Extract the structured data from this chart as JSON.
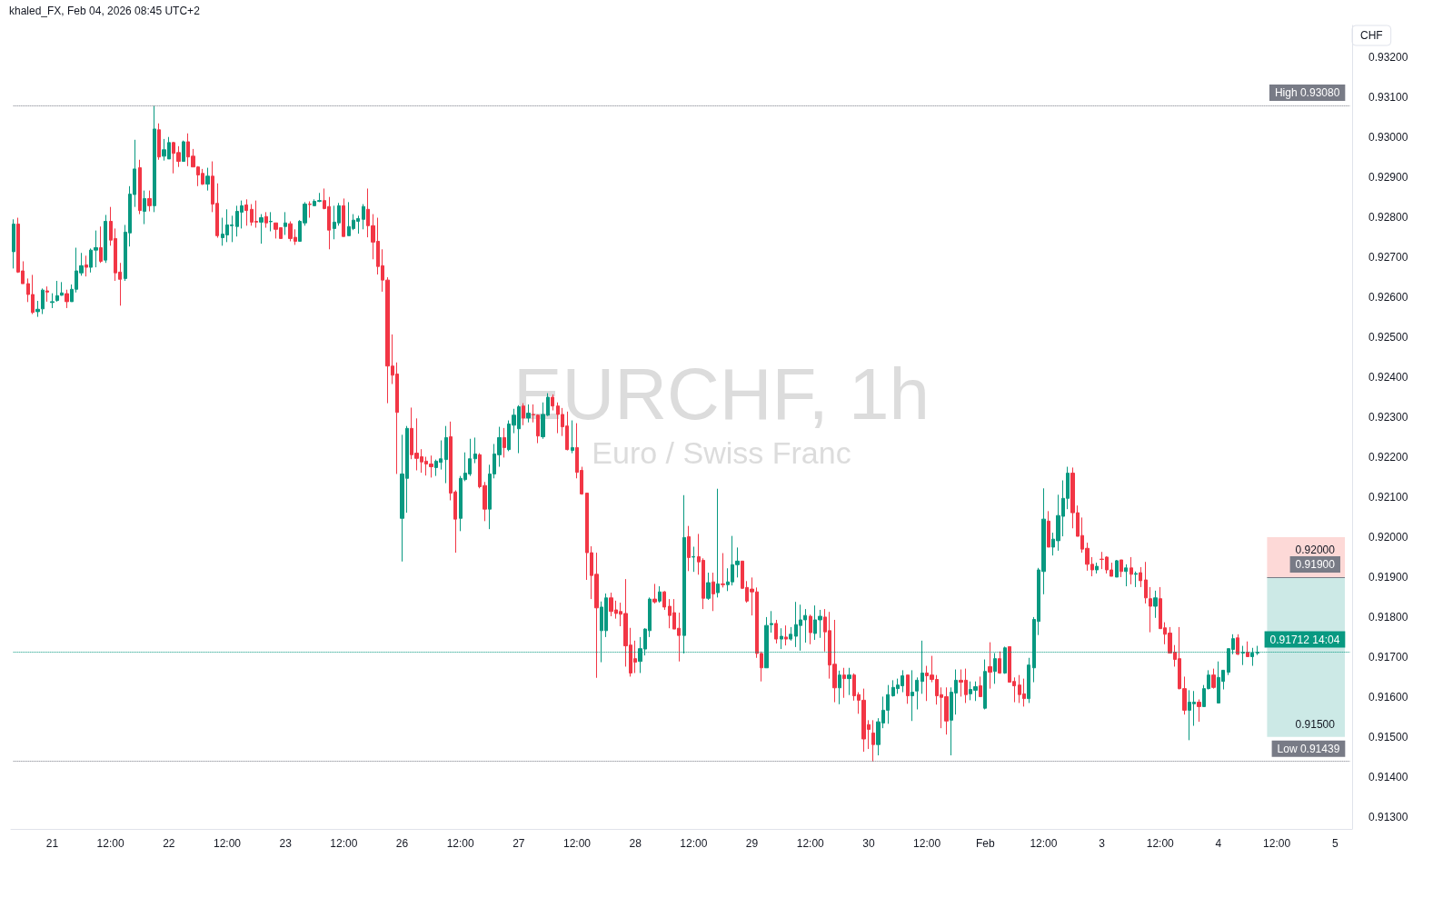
{
  "chart_data": {
    "type": "candlestick",
    "title": "EURCHF, 1h",
    "subtitle": "Euro / Swiss Franc",
    "ylabel": "CHF",
    "annotations": [
      "khaled_FX, Feb 04, 2026 08:45 UTC+2",
      {
        "text": "0.91900",
        "y": 0.919
      }
    ],
    "colors": [
      "#089981",
      "#f23645",
      "#f23645",
      "#f23645",
      "#f23645",
      "#089981",
      "#089981",
      "#f23645",
      "#089981",
      "#089981",
      "#089981",
      "#f23645",
      "#089981",
      "#089981",
      "#089981",
      "#f23645",
      "#089981",
      "#089981",
      "#f23645",
      "#089981",
      "#f23645",
      "#f23645",
      "#f23645",
      "#089981",
      "#089981",
      "#089981",
      "#f23645",
      "#089981",
      "#f23645",
      "#089981",
      "#f23645",
      "#089981",
      "#089981",
      "#f23645",
      "#f23645",
      "#089981",
      "#f23645",
      "#f23645",
      "#f23645",
      "#f23645",
      "#089981",
      "#f23645",
      "#f23645",
      "#089981",
      "#089981",
      "#089981",
      "#089981",
      "#089981",
      "#f23645",
      "#f23645",
      "#f23645",
      "#089981",
      "#f23645",
      "#089981",
      "#f23645",
      "#f23645",
      "#089981",
      "#f23645",
      "#f23645",
      "#089981",
      "#089981",
      "#f23645",
      "#089981",
      "#089981",
      "#f23645",
      "#f23645",
      "#089981",
      "#089981",
      "#f23645",
      "#089981",
      "#089981",
      "#089981",
      "#089981",
      "#f23645",
      "#f23645",
      "#f23645",
      "#f23645",
      "#f23645",
      "#f23645",
      "#f23645",
      "#089981",
      "#089981",
      "#f23645",
      "#f23645",
      "#f23645",
      "#f23645",
      "#f23645",
      "#089981",
      "#089981",
      "#089981",
      "#f23645",
      "#f23645",
      "#089981",
      "#089981",
      "#089981",
      "#089981",
      "#f23645",
      "#f23645",
      "#089981",
      "#089981",
      "#089981",
      "#f23645",
      "#089981",
      "#089981",
      "#089981",
      "#f23645",
      "#089981",
      "#f23645",
      "#f23645",
      "#089981",
      "#089981",
      "#f23645",
      "#f23645",
      "#f23645",
      "#f23645",
      "#089981",
      "#f23645",
      "#f23645",
      "#f23645",
      "#f23645",
      "#f23645",
      "#089981",
      "#089981",
      "#f23645",
      "#f23645",
      "#f23645",
      "#f23645",
      "#f23645",
      "#f23645",
      "#089981",
      "#089981",
      "#089981",
      "#f23645",
      "#089981",
      "#f23645",
      "#f23645",
      "#f23645",
      "#f23645",
      "#089981",
      "#f23645",
      "#089981",
      "#f23645",
      "#f23645",
      "#089981",
      "#f23645",
      "#089981",
      "#f23645",
      "#089981",
      "#089981",
      "#089981",
      "#f23645",
      "#f23645",
      "#f23645",
      "#f23645",
      "#f23645",
      "#089981",
      "#089981",
      "#f23645",
      "#089981",
      "#f23645",
      "#089981",
      "#089981",
      "#089981",
      "#089981",
      "#f23645",
      "#089981",
      "#089981",
      "#f23645",
      "#f23645",
      "#f23645",
      "#089981",
      "#f23645",
      "#089981",
      "#f23645",
      "#f23645",
      "#f23645",
      "#f23645",
      "#f23645",
      "#089981",
      "#089981",
      "#089981",
      "#089981",
      "#089981",
      "#089981",
      "#f23645",
      "#089981",
      "#089981",
      "#089981",
      "#f23645",
      "#f23645",
      "#f23645",
      "#f23645",
      "#f23645",
      "#089981",
      "#089981",
      "#f23645",
      "#f23645",
      "#089981",
      "#089981",
      "#f23645",
      "#089981",
      "#f23645",
      "#089981",
      "#f23645",
      "#089981",
      "#f23645",
      "#f23645",
      "#f23645",
      "#f23645",
      "#089981",
      "#089981",
      "#089981",
      "#089981",
      "#f23645",
      "#089981",
      "#089981",
      "#089981",
      "#089981",
      "#f23645",
      "#f23645",
      "#f23645",
      "#f23645",
      "#f23645",
      "#089981",
      "#f23645",
      "#f23645",
      "#f23645",
      "#089981",
      "#f23645",
      "#089981",
      "#f23645",
      "#089981",
      "#f23645",
      "#f23645",
      "#f23645",
      "#089981",
      "#f23645",
      "#f23645",
      "#f23645",
      "#f23645",
      "#f23645",
      "#f23645",
      "#089981",
      "#089981",
      "#f23645",
      "#089981",
      "#089981",
      "#f23645",
      "#089981",
      "#089981",
      "#089981",
      "#089981",
      "#f23645",
      "#089981",
      "#f23645",
      "#089981",
      "#089981",
      null,
      null,
      null,
      null,
      null,
      null,
      null,
      null,
      null,
      null,
      null,
      null,
      null,
      null,
      null,
      null,
      null,
      null,
      null
    ],
    "categories": [
      null,
      null,
      null,
      null,
      null,
      null,
      null,
      null,
      "21",
      null,
      null,
      null,
      null,
      null,
      null,
      null,
      null,
      null,
      null,
      null,
      "12:00",
      null,
      null,
      null,
      null,
      null,
      null,
      null,
      null,
      null,
      null,
      null,
      "22",
      null,
      null,
      null,
      null,
      null,
      null,
      null,
      null,
      null,
      null,
      null,
      "12:00",
      null,
      null,
      null,
      null,
      null,
      null,
      null,
      null,
      null,
      null,
      null,
      "23",
      null,
      null,
      null,
      null,
      null,
      null,
      null,
      null,
      null,
      null,
      null,
      "12:00",
      null,
      null,
      null,
      null,
      null,
      null,
      null,
      null,
      null,
      null,
      null,
      "26",
      null,
      null,
      null,
      null,
      null,
      null,
      null,
      null,
      null,
      null,
      null,
      "12:00",
      null,
      null,
      null,
      null,
      null,
      null,
      null,
      null,
      null,
      null,
      null,
      "27",
      null,
      null,
      null,
      null,
      null,
      null,
      null,
      null,
      null,
      null,
      null,
      "12:00",
      null,
      null,
      null,
      null,
      null,
      null,
      null,
      null,
      null,
      null,
      null,
      "28",
      null,
      null,
      null,
      null,
      null,
      null,
      null,
      null,
      null,
      null,
      null,
      "12:00",
      null,
      null,
      null,
      null,
      null,
      null,
      null,
      null,
      null,
      null,
      null,
      "29",
      null,
      null,
      null,
      null,
      null,
      null,
      null,
      null,
      null,
      null,
      null,
      "12:00",
      null,
      null,
      null,
      null,
      null,
      null,
      null,
      null,
      null,
      null,
      null,
      "30",
      null,
      null,
      null,
      null,
      null,
      null,
      null,
      null,
      null,
      null,
      null,
      "12:00",
      null,
      null,
      null,
      null,
      null,
      null,
      null,
      null,
      null,
      null,
      null,
      "Feb",
      null,
      null,
      null,
      null,
      null,
      null,
      null,
      null,
      null,
      null,
      null,
      "12:00",
      null,
      null,
      null,
      null,
      null,
      null,
      null,
      null,
      null,
      null,
      null,
      "3",
      null,
      null,
      null,
      null,
      null,
      null,
      null,
      null,
      null,
      null,
      null,
      "12:00",
      null,
      null,
      null,
      null,
      null,
      null,
      null,
      null,
      null,
      null,
      null,
      "4",
      null,
      null,
      null,
      null,
      null,
      null,
      null,
      null,
      null,
      null,
      null,
      "12:00",
      null,
      null,
      null,
      null,
      null,
      null,
      null,
      null,
      null,
      null,
      null,
      "5",
      null,
      null,
      null
    ],
    "ohlc": [
      [
        0.92714,
        0.92795,
        0.92672,
        0.92783
      ],
      [
        0.92783,
        0.92799,
        0.92661,
        0.92663
      ],
      [
        0.92666,
        0.9269,
        0.92634,
        0.92634
      ],
      [
        0.92634,
        0.92647,
        0.92588,
        0.92607
      ],
      [
        0.92607,
        0.92656,
        0.92558,
        0.92562
      ],
      [
        0.92564,
        0.92591,
        0.92551,
        0.9257
      ],
      [
        0.92571,
        0.92622,
        0.92558,
        0.92618
      ],
      [
        0.92616,
        0.92627,
        0.92589,
        0.92613
      ],
      [
        0.92587,
        0.9261,
        0.92573,
        0.92589
      ],
      [
        0.92592,
        0.92641,
        0.92589,
        0.92604
      ],
      [
        0.92605,
        0.92638,
        0.92604,
        0.92611
      ],
      [
        0.92609,
        0.92619,
        0.92573,
        0.92589
      ],
      [
        0.92589,
        0.92632,
        0.92589,
        0.9262
      ],
      [
        0.9262,
        0.92724,
        0.92612,
        0.92666
      ],
      [
        0.92661,
        0.92711,
        0.92654,
        0.92679
      ],
      [
        0.92681,
        0.92704,
        0.92652,
        0.92675
      ],
      [
        0.92675,
        0.92722,
        0.92662,
        0.92718
      ],
      [
        0.92718,
        0.92767,
        0.92675,
        0.92724
      ],
      [
        0.92724,
        0.92777,
        0.92686,
        0.9269
      ],
      [
        0.92693,
        0.92806,
        0.92686,
        0.9279
      ],
      [
        0.9279,
        0.92826,
        0.92729,
        0.92743
      ],
      [
        0.92747,
        0.92772,
        0.92641,
        0.92661
      ],
      [
        0.92663,
        0.92686,
        0.92579,
        0.92645
      ],
      [
        0.92647,
        0.92781,
        0.92641,
        0.92763
      ],
      [
        0.92761,
        0.92878,
        0.92727,
        0.92858
      ],
      [
        0.92857,
        0.92994,
        0.92826,
        0.92921
      ],
      [
        0.92924,
        0.92944,
        0.92808,
        0.92817
      ],
      [
        0.92815,
        0.92867,
        0.92783,
        0.92847
      ],
      [
        0.92847,
        0.92867,
        0.92815,
        0.92829
      ],
      [
        0.92829,
        0.9308,
        0.92813,
        0.93021
      ],
      [
        0.93019,
        0.93035,
        0.92944,
        0.92951
      ],
      [
        0.92953,
        0.92996,
        0.92942,
        0.92969
      ],
      [
        0.92946,
        0.93001,
        0.92946,
        0.92987
      ],
      [
        0.92987,
        0.92989,
        0.9291,
        0.9296
      ],
      [
        0.92962,
        0.92978,
        0.92926,
        0.9294
      ],
      [
        0.9294,
        0.92992,
        0.9294,
        0.92989
      ],
      [
        0.92989,
        0.9301,
        0.92928,
        0.92951
      ],
      [
        0.92953,
        0.92971,
        0.92926,
        0.92926
      ],
      [
        0.92926,
        0.92928,
        0.92878,
        0.92906
      ],
      [
        0.9291,
        0.92921,
        0.92881,
        0.92883
      ],
      [
        0.92883,
        0.92924,
        0.92867,
        0.92903
      ],
      [
        0.92903,
        0.9294,
        0.92813,
        0.92833
      ],
      [
        0.92835,
        0.92885,
        0.92749,
        0.92754
      ],
      [
        0.92749,
        0.92799,
        0.92729,
        0.92758
      ],
      [
        0.92756,
        0.9282,
        0.92738,
        0.92781
      ],
      [
        0.92779,
        0.92804,
        0.92738,
        0.92781
      ],
      [
        0.92777,
        0.92829,
        0.92752,
        0.92815
      ],
      [
        0.92813,
        0.92842,
        0.92772,
        0.92829
      ],
      [
        0.92831,
        0.92845,
        0.92779,
        0.92817
      ],
      [
        0.9282,
        0.92833,
        0.92779,
        0.92788
      ],
      [
        0.9279,
        0.92842,
        0.92774,
        0.92788
      ],
      [
        0.92788,
        0.92808,
        0.92734,
        0.92799
      ],
      [
        0.92802,
        0.92813,
        0.92774,
        0.92786
      ],
      [
        0.92789,
        0.92813,
        0.92765,
        0.9279
      ],
      [
        0.92786,
        0.92786,
        0.92747,
        0.9277
      ],
      [
        0.92774,
        0.92774,
        0.92747,
        0.92747
      ],
      [
        0.92777,
        0.92813,
        0.92756,
        0.92786
      ],
      [
        0.92784,
        0.9279,
        0.9274,
        0.92747
      ],
      [
        0.9275,
        0.9277,
        0.92731,
        0.9274
      ],
      [
        0.9274,
        0.92793,
        0.9274,
        0.9279
      ],
      [
        0.92786,
        0.92838,
        0.92779,
        0.92833
      ],
      [
        0.92833,
        0.9284,
        0.92799,
        0.92832
      ],
      [
        0.92829,
        0.92845,
        0.92829,
        0.9284
      ],
      [
        0.9284,
        0.92861,
        0.92838,
        0.92842
      ],
      [
        0.92842,
        0.92872,
        0.9282,
        0.92822
      ],
      [
        0.92827,
        0.92851,
        0.9272,
        0.92768
      ],
      [
        0.92772,
        0.92829,
        0.92745,
        0.92788
      ],
      [
        0.92786,
        0.92836,
        0.92779,
        0.92829
      ],
      [
        0.92829,
        0.92847,
        0.92752,
        0.92752
      ],
      [
        0.92754,
        0.92838,
        0.92754,
        0.92777
      ],
      [
        0.92772,
        0.92808,
        0.92768,
        0.92793
      ],
      [
        0.9279,
        0.92804,
        0.92759,
        0.92797
      ],
      [
        0.92795,
        0.92833,
        0.9277,
        0.92827
      ],
      [
        0.9282,
        0.92872,
        0.9275,
        0.92779
      ],
      [
        0.92779,
        0.92808,
        0.92695,
        0.92738
      ],
      [
        0.9274,
        0.92799,
        0.92657,
        0.92677
      ],
      [
        0.92679,
        0.9272,
        0.92614,
        0.92643
      ],
      [
        0.92643,
        0.9265,
        0.92335,
        0.92428
      ],
      [
        0.92428,
        0.92507,
        0.92383,
        0.92405
      ],
      [
        0.92408,
        0.92437,
        0.92158,
        0.92312
      ],
      [
        0.92047,
        0.92256,
        0.91939,
        0.92158
      ],
      [
        0.92147,
        0.92278,
        0.92061,
        0.92272
      ],
      [
        0.92272,
        0.92324,
        0.92195,
        0.92206
      ],
      [
        0.9221,
        0.92297,
        0.92167,
        0.92197
      ],
      [
        0.92201,
        0.9222,
        0.92161,
        0.92188
      ],
      [
        0.9219,
        0.92201,
        0.92154,
        0.92183
      ],
      [
        0.92183,
        0.92204,
        0.92149,
        0.92176
      ],
      [
        0.92174,
        0.92194,
        0.92153,
        0.9219
      ],
      [
        0.92187,
        0.92242,
        0.92169,
        0.92196
      ],
      [
        0.92194,
        0.92278,
        0.92135,
        0.92249
      ],
      [
        0.92251,
        0.92289,
        0.92092,
        0.9211
      ],
      [
        0.92113,
        0.92117,
        0.91961,
        0.92045
      ],
      [
        0.92047,
        0.92153,
        0.92015,
        0.92147
      ],
      [
        0.92144,
        0.92212,
        0.9214,
        0.9216
      ],
      [
        0.92158,
        0.92246,
        0.92153,
        0.92196
      ],
      [
        0.92196,
        0.92249,
        0.92185,
        0.92208
      ],
      [
        0.92206,
        0.9221,
        0.92122,
        0.92126
      ],
      [
        0.92129,
        0.92138,
        0.9204,
        0.9207
      ],
      [
        0.9207,
        0.92181,
        0.9202,
        0.92158
      ],
      [
        0.92158,
        0.92233,
        0.92147,
        0.92208
      ],
      [
        0.92206,
        0.92276,
        0.92176,
        0.92249
      ],
      [
        0.92249,
        0.92273,
        0.92199,
        0.92224
      ],
      [
        0.92219,
        0.92292,
        0.92215,
        0.92283
      ],
      [
        0.9228,
        0.92321,
        0.9226,
        0.92305
      ],
      [
        0.92271,
        0.9233,
        0.9221,
        0.92326
      ],
      [
        0.92328,
        0.92335,
        0.9228,
        0.92298
      ],
      [
        0.92298,
        0.92332,
        0.92287,
        0.9231
      ],
      [
        0.92307,
        0.92332,
        0.92287,
        0.92306
      ],
      [
        0.92305,
        0.92307,
        0.92235,
        0.92253
      ],
      [
        0.92251,
        0.92337,
        0.92246,
        0.92307
      ],
      [
        0.92305,
        0.9236,
        0.92303,
        0.9235
      ],
      [
        0.9235,
        0.92357,
        0.92317,
        0.92328
      ],
      [
        0.92328,
        0.92337,
        0.9226,
        0.92307
      ],
      [
        0.92307,
        0.92323,
        0.92253,
        0.92276
      ],
      [
        0.92278,
        0.92314,
        0.92217,
        0.92219
      ],
      [
        0.92217,
        0.92292,
        0.9221,
        0.92224
      ],
      [
        0.92224,
        0.92285,
        0.92147,
        0.92162
      ],
      [
        0.92167,
        0.92176,
        0.92106,
        0.92108
      ],
      [
        0.9211,
        0.9211,
        0.91893,
        0.91961
      ],
      [
        0.91961,
        0.91977,
        0.91845,
        0.91904
      ],
      [
        0.91907,
        0.91961,
        0.91648,
        0.91823
      ],
      [
        0.91766,
        0.91839,
        0.91687,
        0.91825
      ],
      [
        0.91766,
        0.91859,
        0.9175,
        0.91848
      ],
      [
        0.91848,
        0.91861,
        0.91802,
        0.91814
      ],
      [
        0.91818,
        0.91841,
        0.91796,
        0.91809
      ],
      [
        0.91814,
        0.91836,
        0.91777,
        0.91807
      ],
      [
        0.91809,
        0.91895,
        0.91676,
        0.91728
      ],
      [
        0.9173,
        0.91773,
        0.91651,
        0.9166
      ],
      [
        0.91696,
        0.91741,
        0.9166,
        0.91687
      ],
      [
        0.91689,
        0.9175,
        0.9166,
        0.91721
      ],
      [
        0.9172,
        0.91772,
        0.91704,
        0.9177
      ],
      [
        0.91766,
        0.91849,
        0.9175,
        0.91845
      ],
      [
        0.91845,
        0.91883,
        0.91834,
        0.91838
      ],
      [
        0.9184,
        0.91877,
        0.91836,
        0.91863
      ],
      [
        0.91863,
        0.91865,
        0.91818,
        0.91825
      ],
      [
        0.91827,
        0.91845,
        0.91772,
        0.91804
      ],
      [
        0.91811,
        0.91845,
        0.9177,
        0.9177
      ],
      [
        0.91772,
        0.91811,
        0.91689,
        0.91754
      ],
      [
        0.91754,
        0.92105,
        0.91709,
        0.91999
      ],
      [
        0.92001,
        0.92028,
        0.91915,
        0.91949
      ],
      [
        0.9195,
        0.91976,
        0.91913,
        0.91951
      ],
      [
        0.91951,
        0.92008,
        0.91906,
        0.91938
      ],
      [
        0.91942,
        0.91947,
        0.9182,
        0.91847
      ],
      [
        0.91847,
        0.91911,
        0.91843,
        0.91886
      ],
      [
        0.91888,
        0.91911,
        0.91815,
        0.91858
      ],
      [
        0.91861,
        0.92121,
        0.91849,
        0.91883
      ],
      [
        0.91883,
        0.9196,
        0.91874,
        0.91881
      ],
      [
        0.91881,
        0.91922,
        0.91865,
        0.91888
      ],
      [
        0.91888,
        0.92003,
        0.91879,
        0.91931
      ],
      [
        0.91931,
        0.91974,
        0.91899,
        0.9194
      ],
      [
        0.9194,
        0.9194,
        0.9187,
        0.91872
      ],
      [
        0.91874,
        0.9189,
        0.91836,
        0.9184
      ],
      [
        0.9187,
        0.91899,
        0.91804,
        0.91863
      ],
      [
        0.91863,
        0.91874,
        0.91698,
        0.91709
      ],
      [
        0.91709,
        0.91714,
        0.91639,
        0.91673
      ],
      [
        0.91673,
        0.918,
        0.91673,
        0.91779
      ],
      [
        0.91781,
        0.91815,
        0.91761,
        0.91784
      ],
      [
        0.91784,
        0.91793,
        0.91734,
        0.91745
      ],
      [
        0.91745,
        0.91772,
        0.9172,
        0.91752
      ],
      [
        0.9175,
        0.91779,
        0.91729,
        0.91745
      ],
      [
        0.91745,
        0.91775,
        0.91741,
        0.91757
      ],
      [
        0.91752,
        0.91838,
        0.91725,
        0.91781
      ],
      [
        0.91779,
        0.91831,
        0.91716,
        0.91793
      ],
      [
        0.91793,
        0.9182,
        0.91736,
        0.91804
      ],
      [
        0.91802,
        0.91806,
        0.91732,
        0.91761
      ],
      [
        0.91759,
        0.91829,
        0.91743,
        0.91793
      ],
      [
        0.91793,
        0.91818,
        0.91748,
        0.91802
      ],
      [
        0.918,
        0.9182,
        0.91714,
        0.91763
      ],
      [
        0.91766,
        0.91813,
        0.91646,
        0.9168
      ],
      [
        0.91682,
        0.91793,
        0.91587,
        0.91623
      ],
      [
        0.91623,
        0.91666,
        0.91582,
        0.91655
      ],
      [
        0.91655,
        0.91673,
        0.91598,
        0.91646
      ],
      [
        0.91646,
        0.91673,
        0.91605,
        0.91655
      ],
      [
        0.91655,
        0.91659,
        0.91591,
        0.91603
      ],
      [
        0.91606,
        0.91612,
        0.91558,
        0.91592
      ],
      [
        0.91592,
        0.91621,
        0.91463,
        0.91495
      ],
      [
        0.91531,
        0.91542,
        0.9147,
        0.91519
      ],
      [
        0.9151,
        0.91542,
        0.91439,
        0.91481
      ],
      [
        0.91481,
        0.91547,
        0.91454,
        0.91538
      ],
      [
        0.91535,
        0.91601,
        0.91522,
        0.91567
      ],
      [
        0.91567,
        0.9163,
        0.91533,
        0.91606
      ],
      [
        0.91603,
        0.91642,
        0.91601,
        0.91624
      ],
      [
        0.91621,
        0.91646,
        0.91608,
        0.9163
      ],
      [
        0.91628,
        0.91667,
        0.91612,
        0.91653
      ],
      [
        0.91655,
        0.91655,
        0.91583,
        0.91603
      ],
      [
        0.91603,
        0.91667,
        0.9154,
        0.91612
      ],
      [
        0.91615,
        0.91649,
        0.91569,
        0.91642
      ],
      [
        0.91639,
        0.91741,
        0.91608,
        0.9166
      ],
      [
        0.9166,
        0.91678,
        0.9159,
        0.91653
      ],
      [
        0.91655,
        0.91703,
        0.91637,
        0.91644
      ],
      [
        0.91644,
        0.91655,
        0.91581,
        0.91603
      ],
      [
        0.91606,
        0.91624,
        0.91522,
        0.91599
      ],
      [
        0.91601,
        0.91624,
        0.91506,
        0.9154
      ],
      [
        0.91542,
        0.91624,
        0.91454,
        0.91612
      ],
      [
        0.9161,
        0.91669,
        0.91556,
        0.91642
      ],
      [
        0.91642,
        0.91669,
        0.91601,
        0.91637
      ],
      [
        0.91642,
        0.91671,
        0.91585,
        0.91606
      ],
      [
        0.91608,
        0.91639,
        0.91592,
        0.91619
      ],
      [
        0.91617,
        0.91639,
        0.9159,
        0.91626
      ],
      [
        0.91628,
        0.91651,
        0.91601,
        0.91601
      ],
      [
        0.91572,
        0.91694,
        0.91569,
        0.91664
      ],
      [
        0.91676,
        0.91737,
        0.91621,
        0.91662
      ],
      [
        0.91664,
        0.9171,
        0.91633,
        0.91696
      ],
      [
        0.91696,
        0.91714,
        0.91658,
        0.9166
      ],
      [
        0.9166,
        0.91726,
        0.91658,
        0.91723
      ],
      [
        0.91726,
        0.91726,
        0.91637,
        0.91637
      ],
      [
        0.91639,
        0.91649,
        0.91587,
        0.91628
      ],
      [
        0.9163,
        0.91655,
        0.91585,
        0.91606
      ],
      [
        0.91608,
        0.91646,
        0.91576,
        0.91596
      ],
      [
        0.91596,
        0.91698,
        0.91585,
        0.9168
      ],
      [
        0.91673,
        0.918,
        0.91637,
        0.91794
      ],
      [
        0.91789,
        0.91923,
        0.91755,
        0.91918
      ],
      [
        0.91914,
        0.92122,
        0.91857,
        0.92045
      ],
      [
        0.9204,
        0.92065,
        0.91975,
        0.91975
      ],
      [
        0.91975,
        0.92011,
        0.91954,
        0.91995
      ],
      [
        0.91991,
        0.92106,
        0.91966,
        0.92054
      ],
      [
        0.92052,
        0.92142,
        0.92002,
        0.92097
      ],
      [
        0.92097,
        0.92176,
        0.9207,
        0.9216
      ],
      [
        0.9216,
        0.92174,
        0.92022,
        0.92061
      ],
      [
        0.92061,
        0.92079,
        0.92002,
        0.92002
      ],
      [
        0.92004,
        0.92049,
        0.91961,
        0.9197
      ],
      [
        0.91972,
        0.91986,
        0.91916,
        0.91932
      ],
      [
        0.91932,
        0.9195,
        0.91902,
        0.91918
      ],
      [
        0.91918,
        0.91936,
        0.91909,
        0.91927
      ],
      [
        0.91945,
        0.91963,
        0.9192,
        0.91944
      ],
      [
        0.9195,
        0.91952,
        0.91909,
        0.91918
      ],
      [
        0.91918,
        0.91936,
        0.91902,
        0.91902
      ],
      [
        0.919,
        0.91943,
        0.919,
        0.91941
      ],
      [
        0.91943,
        0.91943,
        0.919,
        0.91914
      ],
      [
        0.91914,
        0.91932,
        0.91877,
        0.91923
      ],
      [
        0.91923,
        0.9195,
        0.91882,
        0.91907
      ],
      [
        0.91907,
        0.91914,
        0.91875,
        0.91909
      ],
      [
        0.91911,
        0.91925,
        0.91875,
        0.91891
      ],
      [
        0.91893,
        0.91938,
        0.91834,
        0.91848
      ],
      [
        0.91846,
        0.91875,
        0.91762,
        0.91827
      ],
      [
        0.91827,
        0.91866,
        0.91798,
        0.91848
      ],
      [
        0.91846,
        0.91875,
        0.91771,
        0.91771
      ],
      [
        0.91773,
        0.91787,
        0.91732,
        0.91757
      ],
      [
        0.9176,
        0.91775,
        0.9171,
        0.9171
      ],
      [
        0.91712,
        0.9173,
        0.91676,
        0.91694
      ],
      [
        0.91696,
        0.91775,
        0.91619,
        0.91621
      ],
      [
        0.91621,
        0.91651,
        0.91556,
        0.91567
      ],
      [
        0.91567,
        0.91617,
        0.91492,
        0.91587
      ],
      [
        0.91583,
        0.91615,
        0.91528,
        0.91587
      ],
      [
        0.91587,
        0.91594,
        0.91538,
        0.91576
      ],
      [
        0.91576,
        0.9163,
        0.91576,
        0.91621
      ],
      [
        0.91621,
        0.91667,
        0.91619,
        0.91655
      ],
      [
        0.91655,
        0.91671,
        0.91621,
        0.91624
      ],
      [
        0.91585,
        0.91689,
        0.91585,
        0.91649
      ],
      [
        0.91639,
        0.91667,
        0.91619,
        0.91667
      ],
      [
        0.91662,
        0.91721,
        0.91655,
        0.91721
      ],
      [
        0.91719,
        0.91757,
        0.91707,
        0.91746
      ],
      [
        0.91748,
        0.91757,
        0.91705,
        0.91707
      ],
      [
        0.9171,
        0.91728,
        0.9168,
        0.91712
      ],
      [
        0.91712,
        0.91739,
        0.91701,
        0.91701
      ],
      [
        0.91701,
        0.91723,
        0.91678,
        0.9171
      ],
      [
        0.9171,
        0.91728,
        0.91705,
        0.91712
      ],
      null,
      null,
      null,
      null,
      null,
      null,
      null,
      null,
      null,
      null,
      null,
      null,
      null,
      null,
      null,
      null,
      null,
      null,
      null
    ],
    "ylim": [
      0.9127,
      0.9328
    ],
    "yticks": [
      {
        "value": 0.913,
        "label": "0.91300"
      },
      {
        "value": 0.914,
        "label": "0.91400"
      },
      {
        "value": 0.915,
        "label": "0.91500"
      },
      {
        "value": 0.916,
        "label": "0.91600"
      },
      {
        "value": 0.917,
        "label": "0.91700"
      },
      {
        "value": 0.918,
        "label": "0.91800"
      },
      {
        "value": 0.919,
        "label": "0.91900"
      },
      {
        "value": 0.92,
        "label": "0.92000"
      },
      {
        "value": 0.921,
        "label": "0.92100"
      },
      {
        "value": 0.922,
        "label": "0.92200"
      },
      {
        "value": 0.923,
        "label": "0.92300"
      },
      {
        "value": 0.924,
        "label": "0.92400"
      },
      {
        "value": 0.925,
        "label": "0.92500"
      },
      {
        "value": 0.926,
        "label": "0.92600"
      },
      {
        "value": 0.927,
        "label": "0.92700"
      },
      {
        "value": 0.928,
        "label": "0.92800"
      },
      {
        "value": 0.929,
        "label": "0.92900"
      },
      {
        "value": 0.93,
        "label": "0.93000"
      },
      {
        "value": 0.931,
        "label": "0.93100"
      },
      {
        "value": 0.932,
        "label": "0.93200"
      }
    ],
    "ref_lines": [
      {
        "axis": "y",
        "value": 0.9308,
        "label": "High 0.93080",
        "color": "#787b86",
        "line_style": "dotted"
      },
      {
        "axis": "y",
        "value": 0.91439,
        "label": "Low 0.91439",
        "color": "#787b86",
        "line_style": "dotted"
      },
      {
        "axis": "y",
        "value": 0.91712,
        "label": "0.91712 14:04",
        "color": "#089981",
        "line_style": "dotted"
      }
    ],
    "bands": [
      {
        "axis": "y",
        "from": 0.919,
        "to": 0.92,
        "label": "0.92000",
        "color": "#fdd9d7"
      },
      {
        "axis": "y",
        "from": 0.915,
        "to": 0.919,
        "label": "0.91500",
        "color": "#cce9e6"
      }
    ]
  }
}
